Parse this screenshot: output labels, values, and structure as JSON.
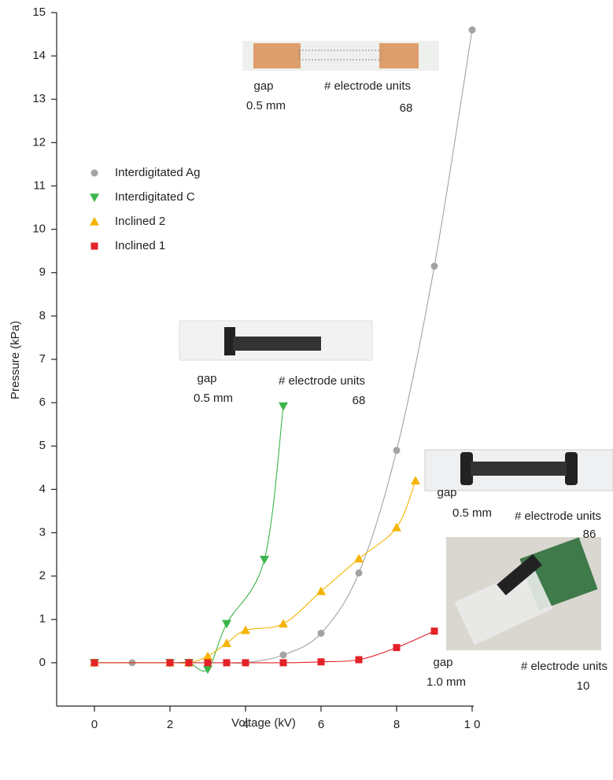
{
  "chart_data": {
    "type": "line",
    "x_label": "Voltage (kV)",
    "y_label": "Pressure (kPa)",
    "xlim": [
      -1,
      10
    ],
    "ylim": [
      -1,
      15
    ],
    "xticks": [
      0,
      2,
      4,
      6,
      8,
      {
        "value": 10,
        "label": "1 0"
      }
    ],
    "yticks": [
      0,
      1,
      2,
      3,
      4,
      5,
      6,
      7,
      8,
      9,
      10,
      11,
      12,
      13,
      14,
      15
    ],
    "legend": "upper left",
    "series": [
      {
        "name": "Interdigitated Ag",
        "color": "#a3a3a3",
        "marker": "circle",
        "x": [
          0,
          1,
          2,
          2.5,
          3,
          3.5,
          4,
          5,
          6,
          7,
          8,
          9,
          10
        ],
        "values": [
          0,
          0,
          0,
          0,
          0,
          0,
          0,
          0.18,
          0.68,
          2.07,
          4.9,
          9.15,
          14.6
        ]
      },
      {
        "name": "Interdigitated C",
        "color": "#3cb54a",
        "marker": "triangle-down",
        "x": [
          0,
          2,
          2.5,
          3,
          3.5,
          4.5,
          5
        ],
        "values": [
          0,
          0,
          0,
          -0.15,
          0.9,
          2.38,
          5.92
        ]
      },
      {
        "name": "Inclined 2",
        "color": "#f5b400",
        "marker": "triangle-up",
        "x": [
          0,
          2,
          2.5,
          3,
          3.5,
          4,
          5,
          6,
          7,
          8,
          8.5
        ],
        "values": [
          0,
          0,
          0,
          0.15,
          0.45,
          0.75,
          0.9,
          1.65,
          2.4,
          3.12,
          4.2
        ]
      },
      {
        "name": "Inclined 1",
        "color": "#e32228",
        "marker": "square",
        "x": [
          0,
          2,
          2.5,
          3,
          3.5,
          4,
          5,
          6,
          7,
          8,
          9
        ],
        "values": [
          0,
          0,
          0,
          0,
          0,
          0,
          0,
          0.02,
          0.07,
          0.35,
          0.73
        ]
      }
    ],
    "annotations": [
      "gap",
      "0.5 mm",
      "# electrode units",
      "68",
      "gap",
      "0.5 mm",
      "# electrode units",
      "68",
      "gap",
      "0.5 mm",
      "# electrode units",
      "86",
      "gap",
      "1.0 mm",
      "# electrode units",
      "10"
    ]
  }
}
